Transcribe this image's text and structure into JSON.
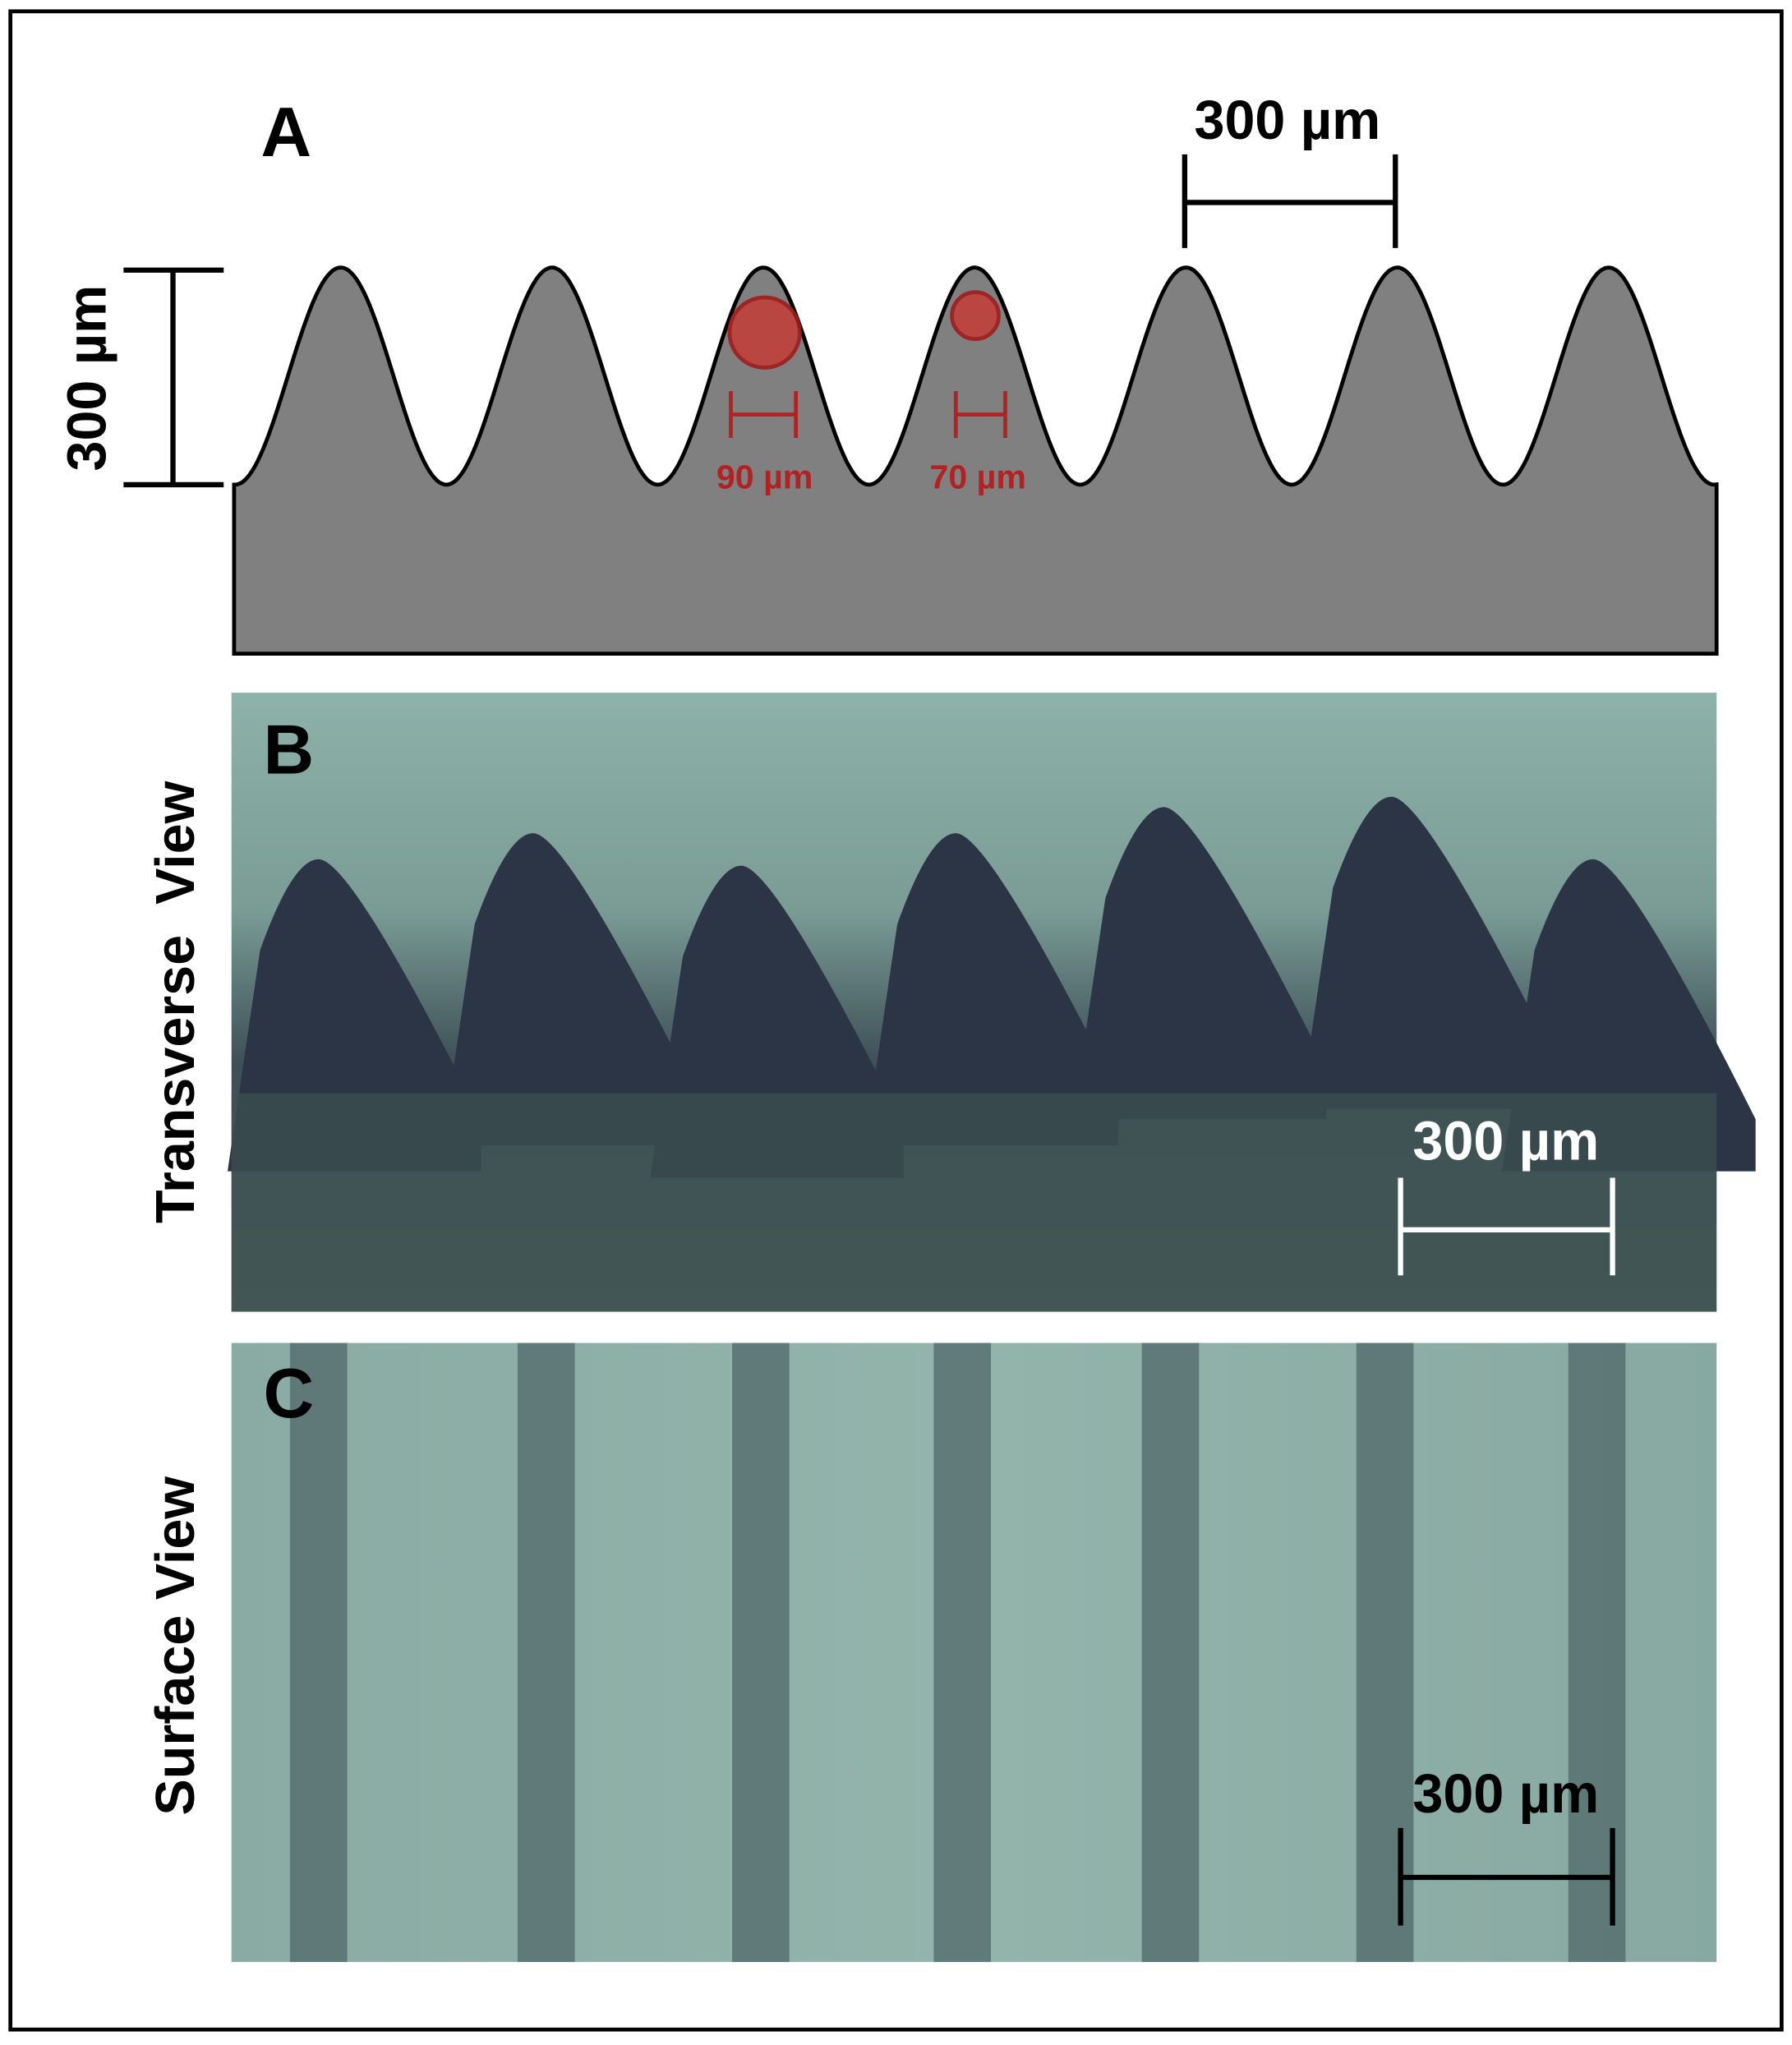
{
  "panels": [
    {
      "label": "A",
      "scale_bars": [
        "300 µm",
        "300 µm"
      ],
      "markers": [
        "90 µm",
        "70 µm"
      ]
    },
    {
      "label": "B",
      "view": "Transverse  View",
      "scale_bar": "300 µm"
    },
    {
      "label": "C",
      "view": "Surface View",
      "scale_bar": "300 µm"
    }
  ]
}
